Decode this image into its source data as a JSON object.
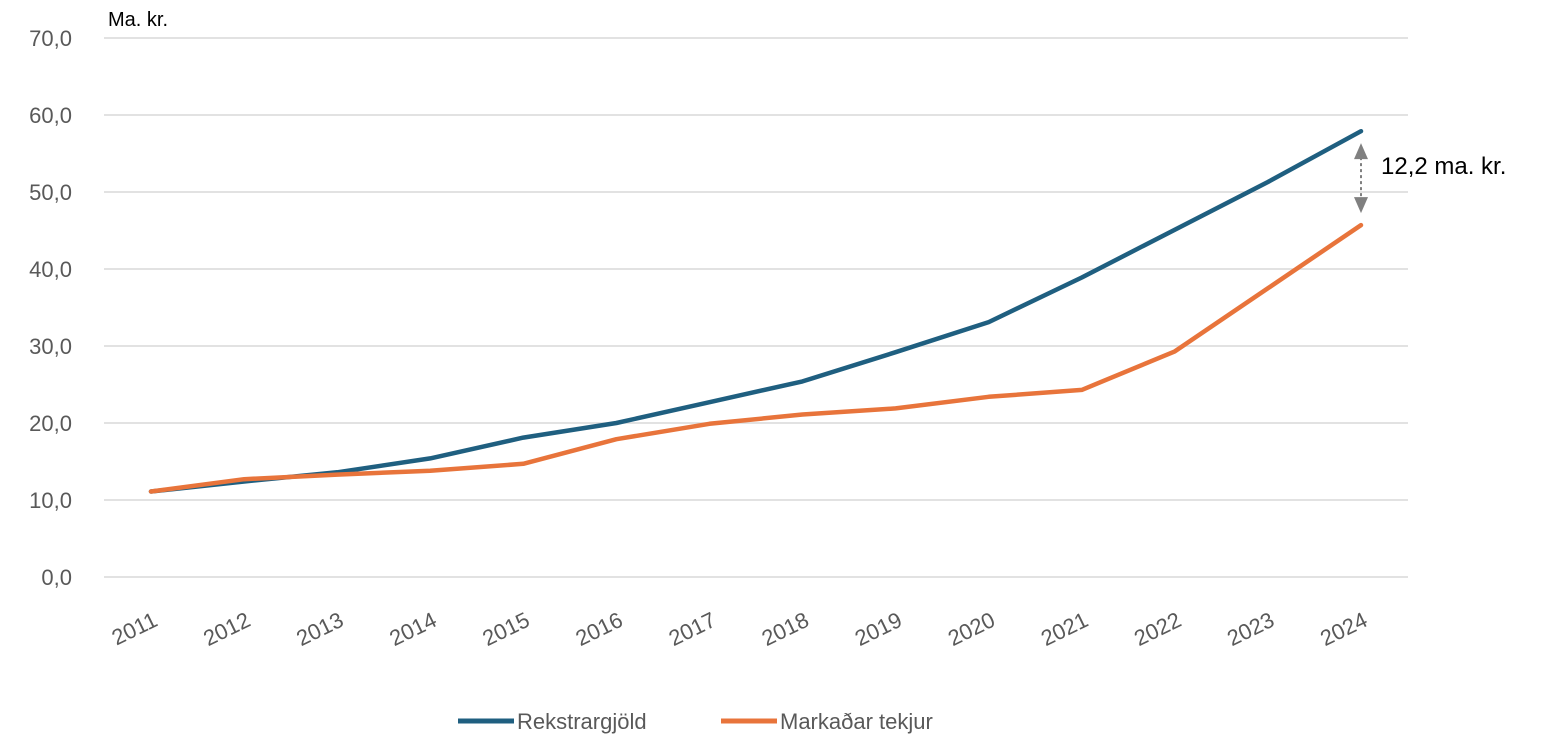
{
  "chart_data": {
    "type": "line",
    "unit_label": "Ma. kr.",
    "categories": [
      "2011",
      "2012",
      "2013",
      "2014",
      "2015",
      "2016",
      "2017",
      "2018",
      "2019",
      "2020",
      "2021",
      "2022",
      "2023",
      "2024"
    ],
    "y_ticks": [
      "0,0",
      "10,0",
      "20,0",
      "30,0",
      "40,0",
      "50,0",
      "60,0",
      "70,0"
    ],
    "ylim": [
      0,
      70
    ],
    "grid": true,
    "legend_position": "bottom",
    "series": [
      {
        "name": "Rekstrargjöld",
        "color": "#1f5f80",
        "values": [
          11.1,
          12.4,
          13.6,
          15.4,
          18.1,
          20.0,
          22.7,
          25.4,
          29.2,
          33.1,
          38.9,
          45.1,
          51.3,
          57.9
        ]
      },
      {
        "name": "Markaðar tekjur",
        "color": "#e8743b",
        "values": [
          11.1,
          12.7,
          13.3,
          13.8,
          14.7,
          17.9,
          19.9,
          21.1,
          21.9,
          23.4,
          24.3,
          29.3,
          37.5,
          45.7
        ]
      }
    ],
    "annotation": {
      "text": "12,2 ma. kr.",
      "category": "2024",
      "from": 45.7,
      "to": 57.9,
      "color": "#808080"
    }
  }
}
